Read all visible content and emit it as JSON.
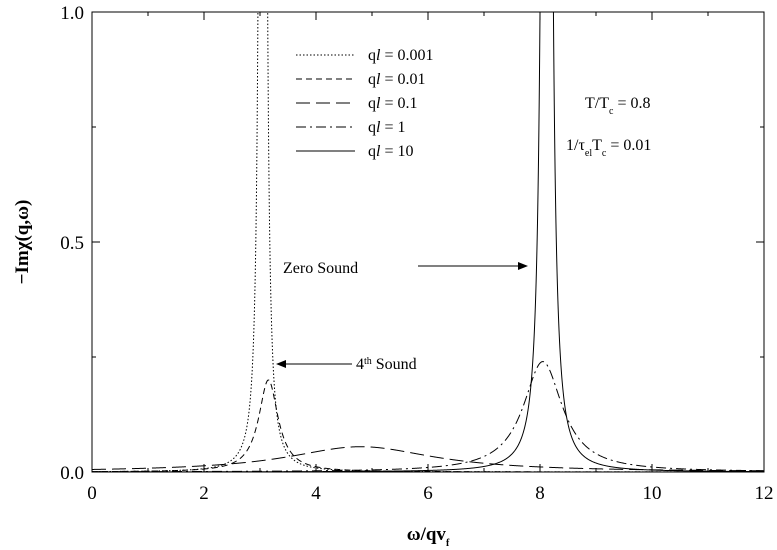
{
  "chart_data": {
    "type": "line",
    "xlabel": "ω/qv_f",
    "ylabel": "−Imχ(q,ω)",
    "xlim": [
      0,
      12
    ],
    "ylim": [
      0,
      1.0
    ],
    "xticks": [
      0,
      2,
      4,
      6,
      8,
      10,
      12
    ],
    "yticks": [
      0.0,
      0.5,
      1.0
    ],
    "xtick_labels": [
      "0",
      "2",
      "4",
      "6",
      "8",
      "10",
      "12"
    ],
    "ytick_labels": [
      "0.0",
      "0.5",
      "1.0"
    ],
    "grid": false,
    "legend_position": "top-center",
    "series": [
      {
        "name": "ql = 0.001",
        "style": "dotted",
        "peak_x": 3.05,
        "peak_y": 20.0,
        "width": 0.04
      },
      {
        "name": "ql = 0.01",
        "style": "short-dash",
        "peak_x": 3.15,
        "peak_y": 0.2,
        "width": 0.42
      },
      {
        "name": "ql = 0.1",
        "style": "long-dash",
        "peak_x": 4.8,
        "peak_y": 0.055,
        "width": 3.2
      },
      {
        "name": "ql = 1",
        "style": "dash-dot",
        "peak_x": 8.05,
        "peak_y": 0.24,
        "width": 0.85
      },
      {
        "name": "ql = 10",
        "style": "solid",
        "peak_x": 8.12,
        "peak_y": 20.0,
        "width": 0.055
      }
    ],
    "legend_labels": [
      "ql = 0.001",
      "ql = 0.01",
      "ql = 0.1",
      "ql = 1",
      "ql = 10"
    ],
    "annotations": {
      "temp_prefix": "T/T",
      "temp_sub": "c",
      "temp_value": " = 0.8",
      "tau_prefix": "1/τ",
      "tau_sub": "el",
      "tau_mid": "T",
      "tau_sub2": "c",
      "tau_value": " = 0.01",
      "zero_sound": "Zero Sound",
      "fourth_number": "4",
      "fourth_sup": "th",
      "fourth_word": " Sound"
    }
  }
}
